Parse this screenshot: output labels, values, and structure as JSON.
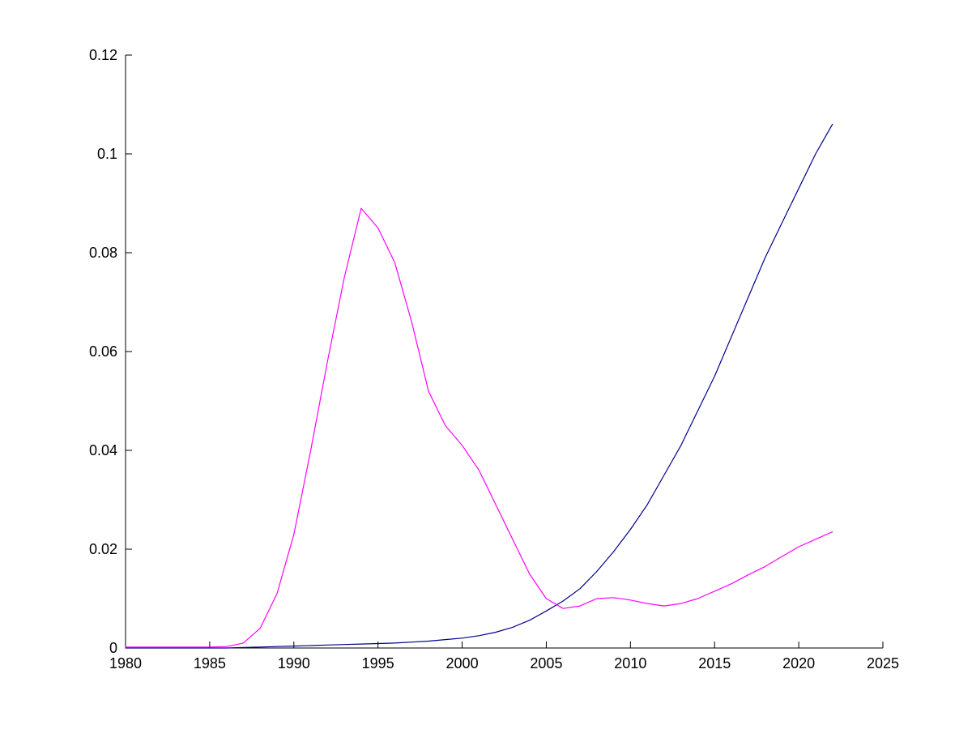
{
  "figure": {
    "background": "#ffffff"
  },
  "chart_data": {
    "type": "line",
    "title": "",
    "xlabel": "",
    "ylabel": "",
    "xlim": [
      1980,
      2025
    ],
    "ylim": [
      0,
      0.12
    ],
    "grid": false,
    "legend": null,
    "xticks": {
      "values": [
        1980,
        1985,
        1990,
        1995,
        2000,
        2005,
        2010,
        2015,
        2020,
        2025
      ],
      "labels": [
        "1980",
        "1985",
        "1990",
        "1995",
        "2000",
        "2005",
        "2010",
        "2015",
        "2020",
        "2025"
      ]
    },
    "yticks": {
      "values": [
        0,
        0.02,
        0.04,
        0.06,
        0.08,
        0.1,
        0.12
      ],
      "labels": [
        "0",
        "0.02",
        "0.04",
        "0.06",
        "0.08",
        "0.1",
        "0.12"
      ]
    },
    "x": [
      1980,
      1981,
      1982,
      1983,
      1984,
      1985,
      1986,
      1987,
      1988,
      1989,
      1990,
      1991,
      1992,
      1993,
      1994,
      1995,
      1996,
      1997,
      1998,
      1999,
      2000,
      2001,
      2002,
      2003,
      2004,
      2005,
      2006,
      2007,
      2008,
      2009,
      2010,
      2011,
      2012,
      2013,
      2014,
      2015,
      2016,
      2017,
      2018,
      2019,
      2020,
      2021,
      2022
    ],
    "series": [
      {
        "name": "dark-blue-series",
        "color": "#00008B",
        "values": [
          0,
          0,
          0,
          0,
          0,
          0,
          0,
          0.0001,
          0.0002,
          0.0003,
          0.0004,
          0.0005,
          0.0006,
          0.0007,
          0.0008,
          0.0009,
          0.001,
          0.0012,
          0.0014,
          0.0017,
          0.002,
          0.0025,
          0.0032,
          0.0042,
          0.0056,
          0.0075,
          0.0095,
          0.012,
          0.0155,
          0.0195,
          0.024,
          0.029,
          0.035,
          0.041,
          0.048,
          0.055,
          0.063,
          0.071,
          0.079,
          0.086,
          0.093,
          0.1,
          0.106
        ]
      },
      {
        "name": "magenta-series",
        "color": "#FF00FF",
        "values": [
          0.0002,
          0.0002,
          0.0002,
          0.0002,
          0.0002,
          0.0002,
          0.0003,
          0.001,
          0.004,
          0.011,
          0.023,
          0.04,
          0.058,
          0.075,
          0.089,
          0.085,
          0.078,
          0.066,
          0.052,
          0.045,
          0.041,
          0.036,
          0.029,
          0.022,
          0.015,
          0.01,
          0.008,
          0.0085,
          0.01,
          0.0102,
          0.0097,
          0.009,
          0.0085,
          0.009,
          0.01,
          0.0115,
          0.013,
          0.0148,
          0.0165,
          0.0185,
          0.0205,
          0.022,
          0.0235
        ]
      }
    ]
  }
}
